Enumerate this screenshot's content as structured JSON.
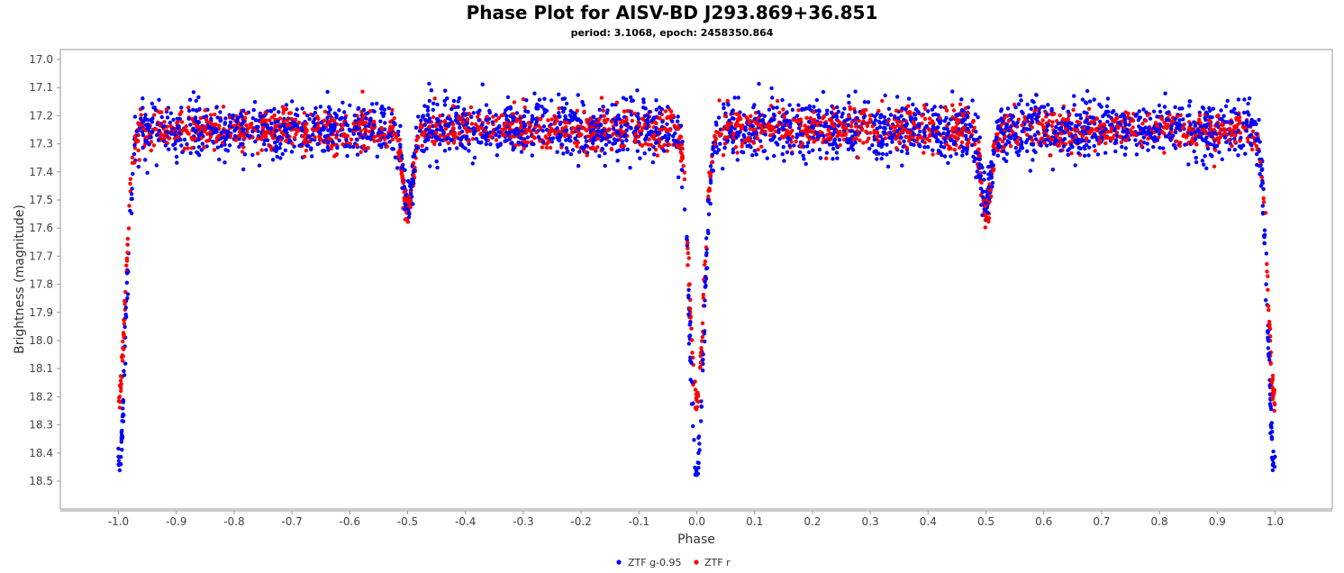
{
  "chart_data": {
    "type": "scatter",
    "title": "Phase Plot for AISV-BD J293.869+36.851",
    "subtitle": "period: 3.1068, epoch: 2458350.864",
    "xlabel": "Phase",
    "ylabel": "Brightness (magnitude)",
    "xlim": [
      -1.05,
      1.05
    ],
    "ylim": [
      17.0,
      18.5
    ],
    "y_inverted": false,
    "x_ticks": [
      "-1.0",
      "-0.9",
      "-0.8",
      "-0.7",
      "-0.6",
      "-0.5",
      "-0.4",
      "-0.3",
      "-0.2",
      "-0.1",
      "0.0",
      "0.1",
      "0.2",
      "0.3",
      "0.4",
      "0.5",
      "0.6",
      "0.7",
      "0.8",
      "0.9",
      "1.0"
    ],
    "y_ticks": [
      "17.0",
      "17.1",
      "17.2",
      "17.3",
      "17.4",
      "17.5",
      "17.6",
      "17.7",
      "17.8",
      "17.9",
      "18.0",
      "18.1",
      "18.2",
      "18.3",
      "18.4",
      "18.5"
    ],
    "grid": false,
    "legend": "bottom-center",
    "series": [
      {
        "name": "ZTF g-0.95",
        "color": "#0000ff",
        "baseline": 17.25,
        "scatter": 0.05,
        "primary_eclipse_depth": 18.47,
        "secondary_eclipse_depth": 17.52
      },
      {
        "name": "ZTF r",
        "color": "#ff0000",
        "baseline": 17.25,
        "scatter": 0.035,
        "primary_eclipse_depth": 18.22,
        "secondary_eclipse_depth": 17.54
      }
    ]
  }
}
